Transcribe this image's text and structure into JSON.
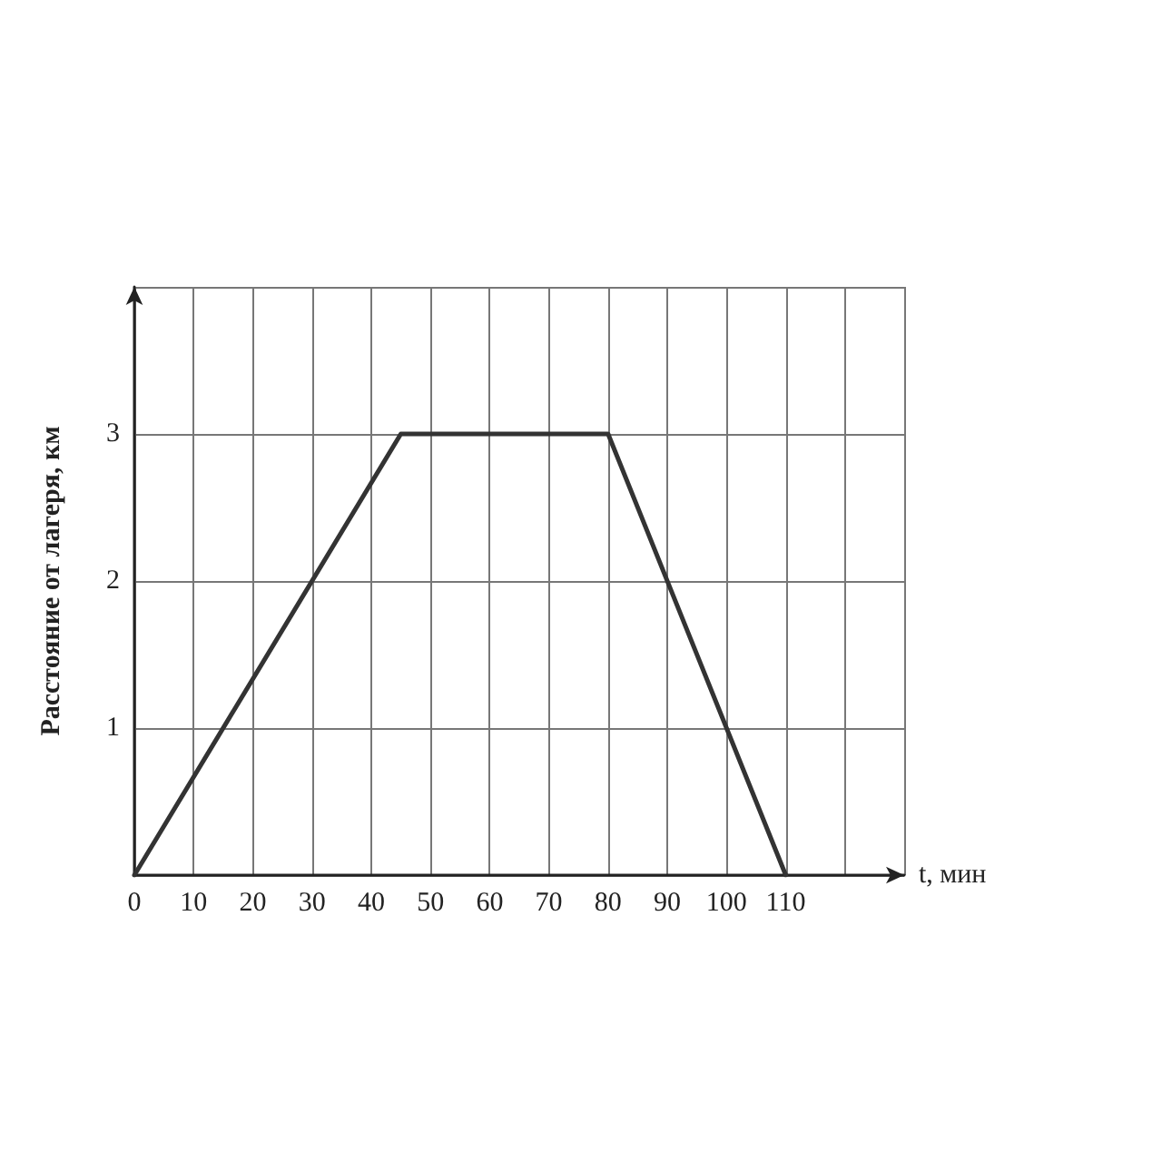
{
  "chart_data": {
    "type": "line",
    "xlabel": "t, мин",
    "ylabel": "Расстояние от лагеря, км",
    "x": [
      0,
      45,
      80,
      110
    ],
    "series": [
      {
        "color": "#333333",
        "values": [
          0,
          3,
          3,
          0
        ]
      }
    ],
    "xlim": [
      0,
      130
    ],
    "ylim": [
      0,
      4
    ],
    "xticks": [
      0,
      10,
      20,
      30,
      40,
      50,
      60,
      70,
      80,
      90,
      100,
      110,
      {
        "value": 120,
        "label": null
      },
      {
        "value": 130,
        "label": null
      }
    ],
    "yticks": [
      {
        "value": 0,
        "label": null
      },
      1,
      2,
      3,
      {
        "value": 4,
        "label": null
      }
    ],
    "grid": true,
    "marker": "none",
    "line_style": "solid"
  }
}
